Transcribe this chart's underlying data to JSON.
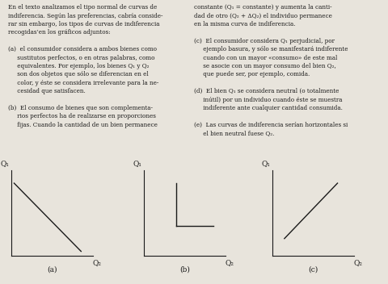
{
  "background_color": "#e8e4dc",
  "text_color": "#1a1a1a",
  "graph_a_label": "(a)",
  "graph_b_label": "(b)",
  "graph_c_label": "(c)",
  "x_axis_label": "Q₂",
  "y_axis_label": "Q₁",
  "line_color": "#1a1a1a",
  "axis_color": "#1a1a1a",
  "text_fontsize": 5.2,
  "label_fontsize": 6.5,
  "left_text": "En el texto analizamos el tipo normal de curvas de\nindiferencia. Según las preferencias, cabría conside-\nrar sin embargo, los tipos de curvas de indiferencia\nrecogidas’en los gráficos adjuntos:\n\n(a)  el consumidor considera a ambos bienes como\n     sustitutos perfectos, o en otras palabras, como\n     equivalentes. Por ejemplo, los bienes Q₁ y Q₂\n     son dos objetos que sólo se diferencian en el\n     color, y éste se considera irrelevante para la ne-\n     cesidad que satisfacen.\n\n(b)  El consumo de bienes que son complementa-\n     rios perfectos ha de realizarse en proporciones\n     fijas. Cuando la cantidad de un bien permanece",
  "right_text": "constante (Q₁ = constante) y aumenta la canti-\ndad de otro (Q₂ + ΔQ₂) el individuo permanece\nen la misma curva de indiferencia.\n\n(c)  El consumidor considera Q₁ perjudicial, por\n     ejemplo basura, y sólo se manifestará indiferente\n     cuando con un mayor «consumo» de este mal\n     se asocie con un mayor consumo del bien Q₂,\n     que puede ser, por ejemplo, comida.\n\n(d)  El bien Q₁ se considera neutral (o totalmente\n     inútil) por un individuo cuando éste se muestra\n     indiferente ante cualquier cantidad consumida.\n\n(e)  Las curvas de indiferencia serían horizontales si\n     el bien neutral fuese Q₂."
}
